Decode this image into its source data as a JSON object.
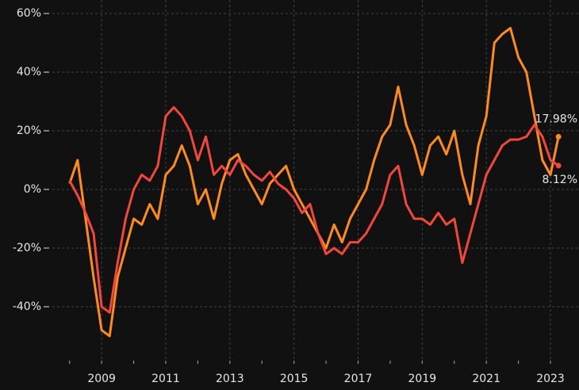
{
  "chart_data": {
    "type": "line",
    "x": [
      2008.0,
      2008.25,
      2008.5,
      2008.75,
      2009.0,
      2009.25,
      2009.5,
      2009.75,
      2010.0,
      2010.25,
      2010.5,
      2010.75,
      2011.0,
      2011.25,
      2011.5,
      2011.75,
      2012.0,
      2012.25,
      2012.5,
      2012.75,
      2013.0,
      2013.25,
      2013.5,
      2013.75,
      2014.0,
      2014.25,
      2014.5,
      2014.75,
      2015.0,
      2015.25,
      2015.5,
      2015.75,
      2016.0,
      2016.25,
      2016.5,
      2016.75,
      2017.0,
      2017.25,
      2017.5,
      2017.75,
      2018.0,
      2018.25,
      2018.5,
      2018.75,
      2019.0,
      2019.25,
      2019.5,
      2019.75,
      2020.0,
      2020.25,
      2020.5,
      2020.75,
      2021.0,
      2021.25,
      2021.5,
      2021.75,
      2022.0,
      2022.25,
      2022.5,
      2022.75,
      2023.0,
      2023.25
    ],
    "series": [
      {
        "color": "#ff8c1a",
        "last_label": "17.98%",
        "values": [
          2,
          10,
          -10,
          -30,
          -48,
          -50,
          -30,
          -20,
          -10,
          -12,
          -5,
          -10,
          5,
          8,
          15,
          8,
          -5,
          0,
          -10,
          2,
          10,
          12,
          5,
          0,
          -5,
          2,
          5,
          8,
          0,
          -5,
          -10,
          -15,
          -20,
          -12,
          -18,
          -10,
          -5,
          0,
          10,
          18,
          22,
          35,
          22,
          15,
          5,
          15,
          18,
          12,
          20,
          5,
          -5,
          15,
          25,
          50,
          53,
          55,
          45,
          40,
          25,
          10,
          5,
          17.98
        ]
      },
      {
        "color": "#f2473a",
        "last_label": "8.12%",
        "values": [
          3,
          -2,
          -8,
          -15,
          -40,
          -42,
          -25,
          -10,
          0,
          5,
          3,
          8,
          25,
          28,
          25,
          20,
          10,
          18,
          5,
          8,
          5,
          10,
          8,
          5,
          3,
          6,
          2,
          0,
          -3,
          -8,
          -5,
          -15,
          -22,
          -20,
          -22,
          -18,
          -18,
          -15,
          -10,
          -5,
          5,
          8,
          -5,
          -10,
          -10,
          -12,
          -8,
          -12,
          -10,
          -25,
          -15,
          -5,
          5,
          10,
          15,
          17,
          17,
          18,
          22,
          18,
          10,
          8.12
        ]
      }
    ],
    "xlim": [
      2005.83,
      2023.89
    ],
    "xticks": [
      2009,
      2011,
      2013,
      2015,
      2017,
      2019,
      2021,
      2023
    ],
    "xminor": [
      2008,
      2009,
      2010,
      2011,
      2012,
      2013,
      2014,
      2015,
      2016,
      2017,
      2018,
      2019,
      2020,
      2021,
      2022,
      2023
    ],
    "ylim": [
      -68.4,
      64.6
    ],
    "yticks": [
      {
        "value": -40,
        "label": "-40%"
      },
      {
        "value": -20,
        "label": "-20%"
      },
      {
        "value": 0,
        "label": "0%"
      },
      {
        "value": 20,
        "label": "20%"
      },
      {
        "value": 40,
        "label": "40%"
      },
      {
        "value": 60,
        "label": "60%"
      }
    ],
    "grid": true
  }
}
